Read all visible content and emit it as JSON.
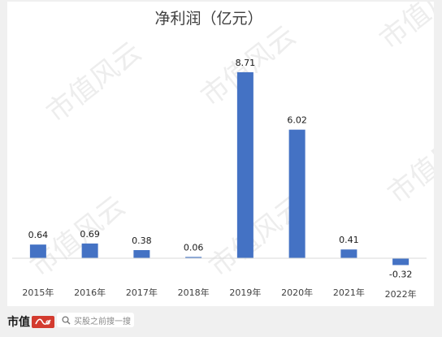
{
  "chart_data": {
    "type": "bar",
    "title": "净利润（亿元）",
    "categories": [
      "2015年",
      "2016年",
      "2017年",
      "2018年",
      "2019年",
      "2020年",
      "2021年",
      "2022年"
    ],
    "values": [
      0.64,
      0.69,
      0.38,
      0.06,
      8.71,
      6.02,
      0.41,
      -0.32
    ],
    "data_labels": [
      "0.64",
      "0.69",
      "0.38",
      "0.06",
      "8.71",
      "6.02",
      "0.41",
      "-0.32"
    ],
    "xlabel": "",
    "ylabel": "",
    "ylim": [
      -0.5,
      10
    ],
    "grid": false,
    "legend": "none",
    "bar_color": "#4472c4"
  },
  "watermark": {
    "text": "市值风云"
  },
  "footer": {
    "brand_text": "市值",
    "brand_logo_text": "风云",
    "brand_logo_color": "#d33b2f",
    "search_placeholder": "买股之前搜一搜"
  }
}
